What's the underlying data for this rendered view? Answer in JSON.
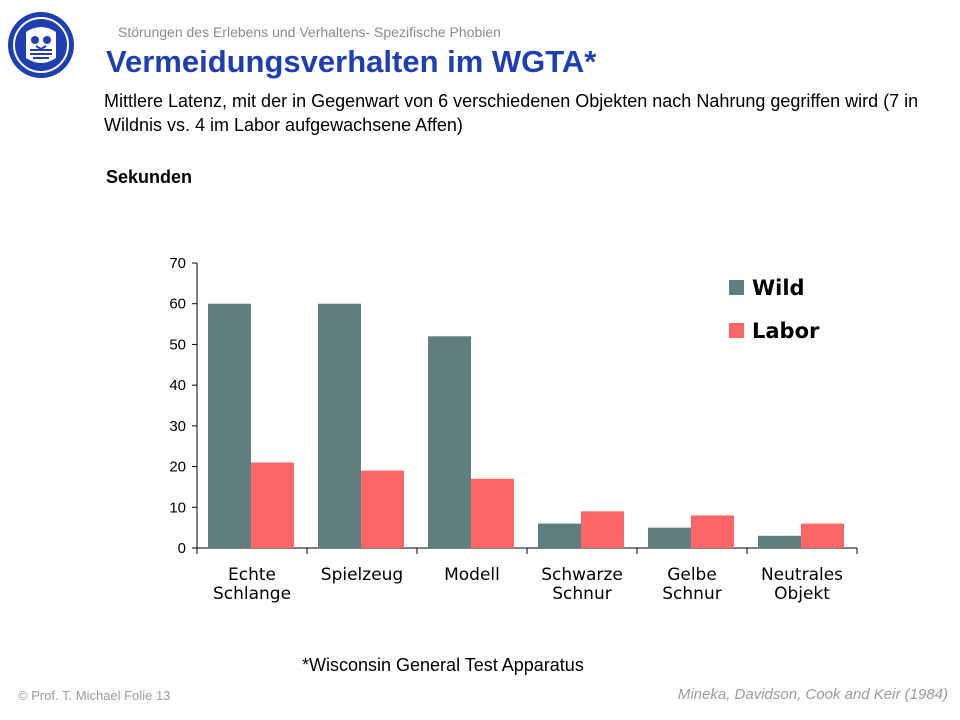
{
  "header": {
    "breadcrumb": "Störungen des Erlebens und Verhaltens- Spezifische Phobien",
    "title": "Vermeidungsverhalten im WGTA*",
    "subtitle": "Mittlere Latenz, mit der in Gegenwart von 6 verschiedenen Objekten nach Nahrung gegriffen wird (7 in Wildnis vs. 4 im Labor aufgewachsene Affen)"
  },
  "chart_data": {
    "type": "bar",
    "title": "",
    "xlabel": "",
    "ylabel": "Sekunden",
    "ylim": [
      0,
      70
    ],
    "yticks": [
      "0",
      "10",
      "20",
      "30",
      "40",
      "50",
      "60",
      "70"
    ],
    "categories": [
      [
        "Echte",
        "Schlange"
      ],
      [
        "Spielzeug"
      ],
      [
        "Modell"
      ],
      [
        "Schwarze",
        "Schnur"
      ],
      [
        "Gelbe",
        "Schnur"
      ],
      [
        "Neutrales",
        "Objekt"
      ]
    ],
    "series": [
      {
        "name": "Wild",
        "color": "#5f7f7f",
        "values": [
          60,
          60,
          52,
          6,
          5,
          3
        ]
      },
      {
        "name": "Labor",
        "color": "#ff6666",
        "values": [
          21,
          19,
          17,
          9,
          8,
          6
        ]
      }
    ],
    "grid": false,
    "legend_position": "top-right"
  },
  "footer": {
    "footnote": "*Wisconsin General Test Apparatus",
    "copyright": "© Prof. T. Michael Folie 13",
    "citation": "Mineka, Davidson, Cook and Keir (1984)"
  },
  "colors": {
    "title": "#1f3fb0",
    "logo": "#1f3fb0",
    "muted_text": "#9a9a9a"
  },
  "icons": {
    "logo": "university-seal-icon"
  }
}
